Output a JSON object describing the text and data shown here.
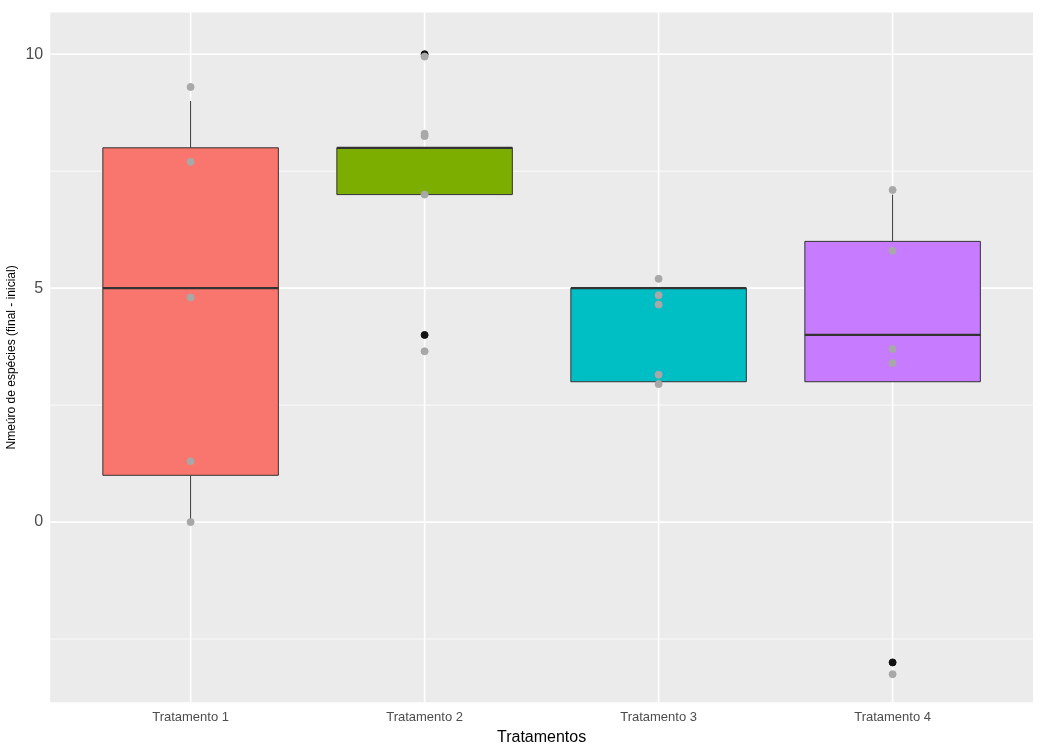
{
  "chart_data": {
    "type": "box",
    "xlabel": "Tratamentos",
    "ylabel": "Nmeúro de espécies (final - inicial)",
    "categories": [
      "Tratamento 1",
      "Tratamento 2",
      "Tratamento 3",
      "Tratamento 4"
    ],
    "ylim": [
      -3.85,
      10.89
    ],
    "yticks": [
      0,
      5,
      10
    ],
    "grid": true,
    "legend": false,
    "series": [
      {
        "colors": [
          "#f8766d",
          "#7cae00",
          "#00bfc4",
          "#c77cff"
        ],
        "boxes": [
          {
            "low": 0,
            "q1": 1,
            "median": 5,
            "q3": 8,
            "high": 9
          },
          {
            "low": 7,
            "q1": 7,
            "median": 8,
            "q3": 8,
            "high": 8,
            "outliers": [
              10,
              4
            ]
          },
          {
            "low": 3,
            "q1": 3,
            "median": 5,
            "q3": 5,
            "high": 5
          },
          {
            "low": 3,
            "q1": 3,
            "median": 4,
            "q3": 6,
            "high": 7,
            "outliers": [
              -3
            ]
          }
        ]
      },
      {
        "type": "scatter",
        "color": "#a8a8a8",
        "x": [
          "Tratamento 1",
          "Tratamento 1",
          "Tratamento 1",
          "Tratamento 1",
          "Tratamento 1",
          "Tratamento 2",
          "Tratamento 2",
          "Tratamento 2",
          "Tratamento 2",
          "Tratamento 2",
          "Tratamento 3",
          "Tratamento 3",
          "Tratamento 3",
          "Tratamento 3",
          "Tratamento 3",
          "Tratamento 4",
          "Tratamento 4",
          "Tratamento 4",
          "Tratamento 4",
          "Tratamento 4"
        ],
        "values": [
          9.3,
          7.7,
          4.8,
          1.3,
          0,
          9.95,
          8.3,
          8.25,
          7,
          3.65,
          5.2,
          4.65,
          4.85,
          3.15,
          2.95,
          7.1,
          5.8,
          3.7,
          3.4,
          -3.25
        ]
      }
    ]
  }
}
